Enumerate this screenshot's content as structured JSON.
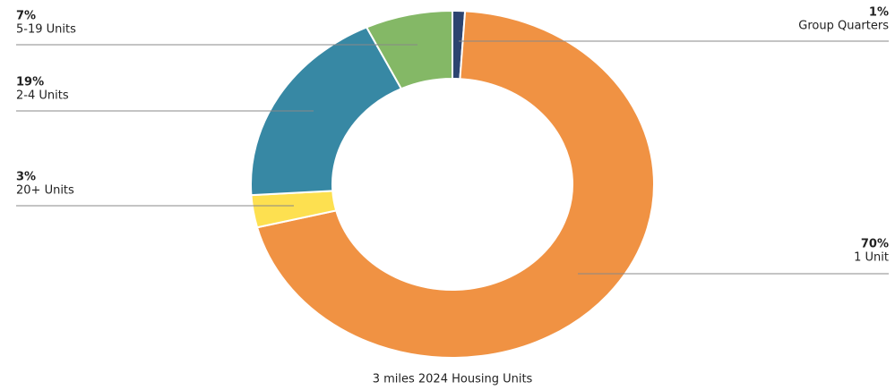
{
  "chart_data": {
    "type": "donut",
    "title": "3 miles 2024 Housing Units",
    "categories": [
      "Group Quarters",
      "1 Unit",
      "20+ Units",
      "2-4 Units",
      "5-19 Units"
    ],
    "values": [
      1,
      70,
      3,
      19,
      7
    ],
    "value_labels": [
      "1%",
      "70%",
      "3%",
      "19%",
      "7%"
    ],
    "colors": [
      "#2c4470",
      "#f09243",
      "#fde050",
      "#3788a4",
      "#84b866"
    ]
  }
}
